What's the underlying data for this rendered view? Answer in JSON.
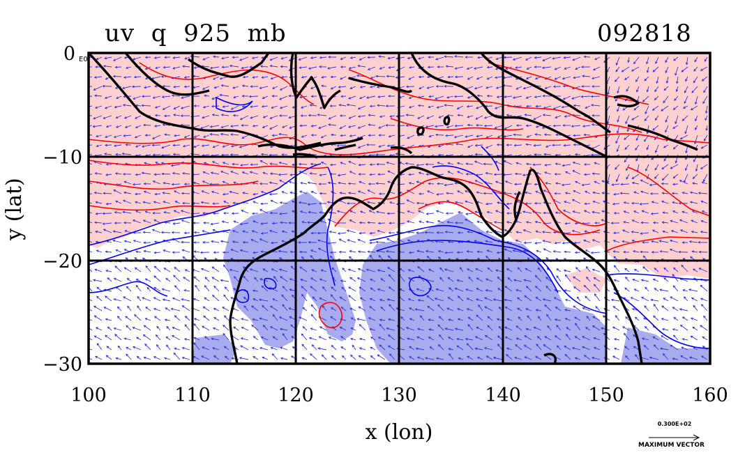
{
  "title": {
    "left": "uv  q  925  mb",
    "right": "092818"
  },
  "axes": {
    "xlabel": "x (lon)",
    "ylabel": "y (lat)",
    "xticks": [
      "100",
      "110",
      "120",
      "130",
      "140",
      "150",
      "160"
    ],
    "yticks": [
      "0",
      "−10",
      "−20",
      "−30"
    ],
    "corner_label": "E0"
  },
  "legend": {
    "scale_value": "0.300E+02",
    "scale_caption": "MAXIMUM VECTOR"
  },
  "colors": {
    "positive_fill": "#ffd0d0",
    "negative_fill": "#a8acee",
    "positive_contour": "#ff0000",
    "negative_contour": "#0000ee",
    "coast": "#000000",
    "vectors": "#3333dd"
  },
  "map_data": {
    "lon_range": [
      100,
      160
    ],
    "lat_range": [
      -30,
      0
    ],
    "fields": [
      "uv wind vectors",
      "q contours"
    ],
    "level": "925 mb"
  }
}
